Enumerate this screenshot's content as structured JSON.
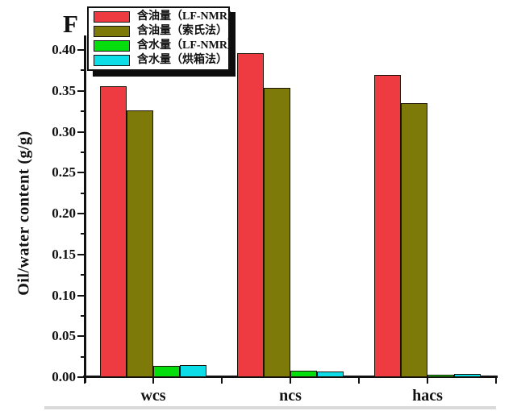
{
  "figure_label": "F",
  "legend": {
    "items": [
      {
        "label": "含油量（LF-NMR）",
        "color": "#ee3a41"
      },
      {
        "label": "含油量（索氏法）",
        "color": "#7e7a0a"
      },
      {
        "label": "含水量（LF-NMR）",
        "color": "#06dd0d"
      },
      {
        "label": "含水量（烘箱法）",
        "color": "#0cdde6"
      }
    ]
  },
  "chart_data": {
    "type": "bar",
    "title": "",
    "categories": [
      "wcs",
      "ncs",
      "hacs"
    ],
    "series": [
      {
        "name": "含油量（LF-NMR）",
        "color": "#ee3a41",
        "values": [
          0.356,
          0.396,
          0.369
        ]
      },
      {
        "name": "含油量（索氏法）",
        "color": "#7e7a0a",
        "values": [
          0.326,
          0.354,
          0.335
        ]
      },
      {
        "name": "含水量（LF-NMR）",
        "color": "#06dd0d",
        "values": [
          0.014,
          0.008,
          0.003
        ]
      },
      {
        "name": "含水量（烘箱法）",
        "color": "#0cdde6",
        "values": [
          0.015,
          0.007,
          0.004
        ]
      }
    ],
    "xlabel": "",
    "ylabel": "Oil/water content (g/g)",
    "ylim": [
      0.0,
      0.4
    ],
    "y_tick_step": 0.05,
    "y_minor_tick_step": 0.025,
    "grid": false,
    "legend_position": "top-left",
    "axes_style": "open-L"
  }
}
